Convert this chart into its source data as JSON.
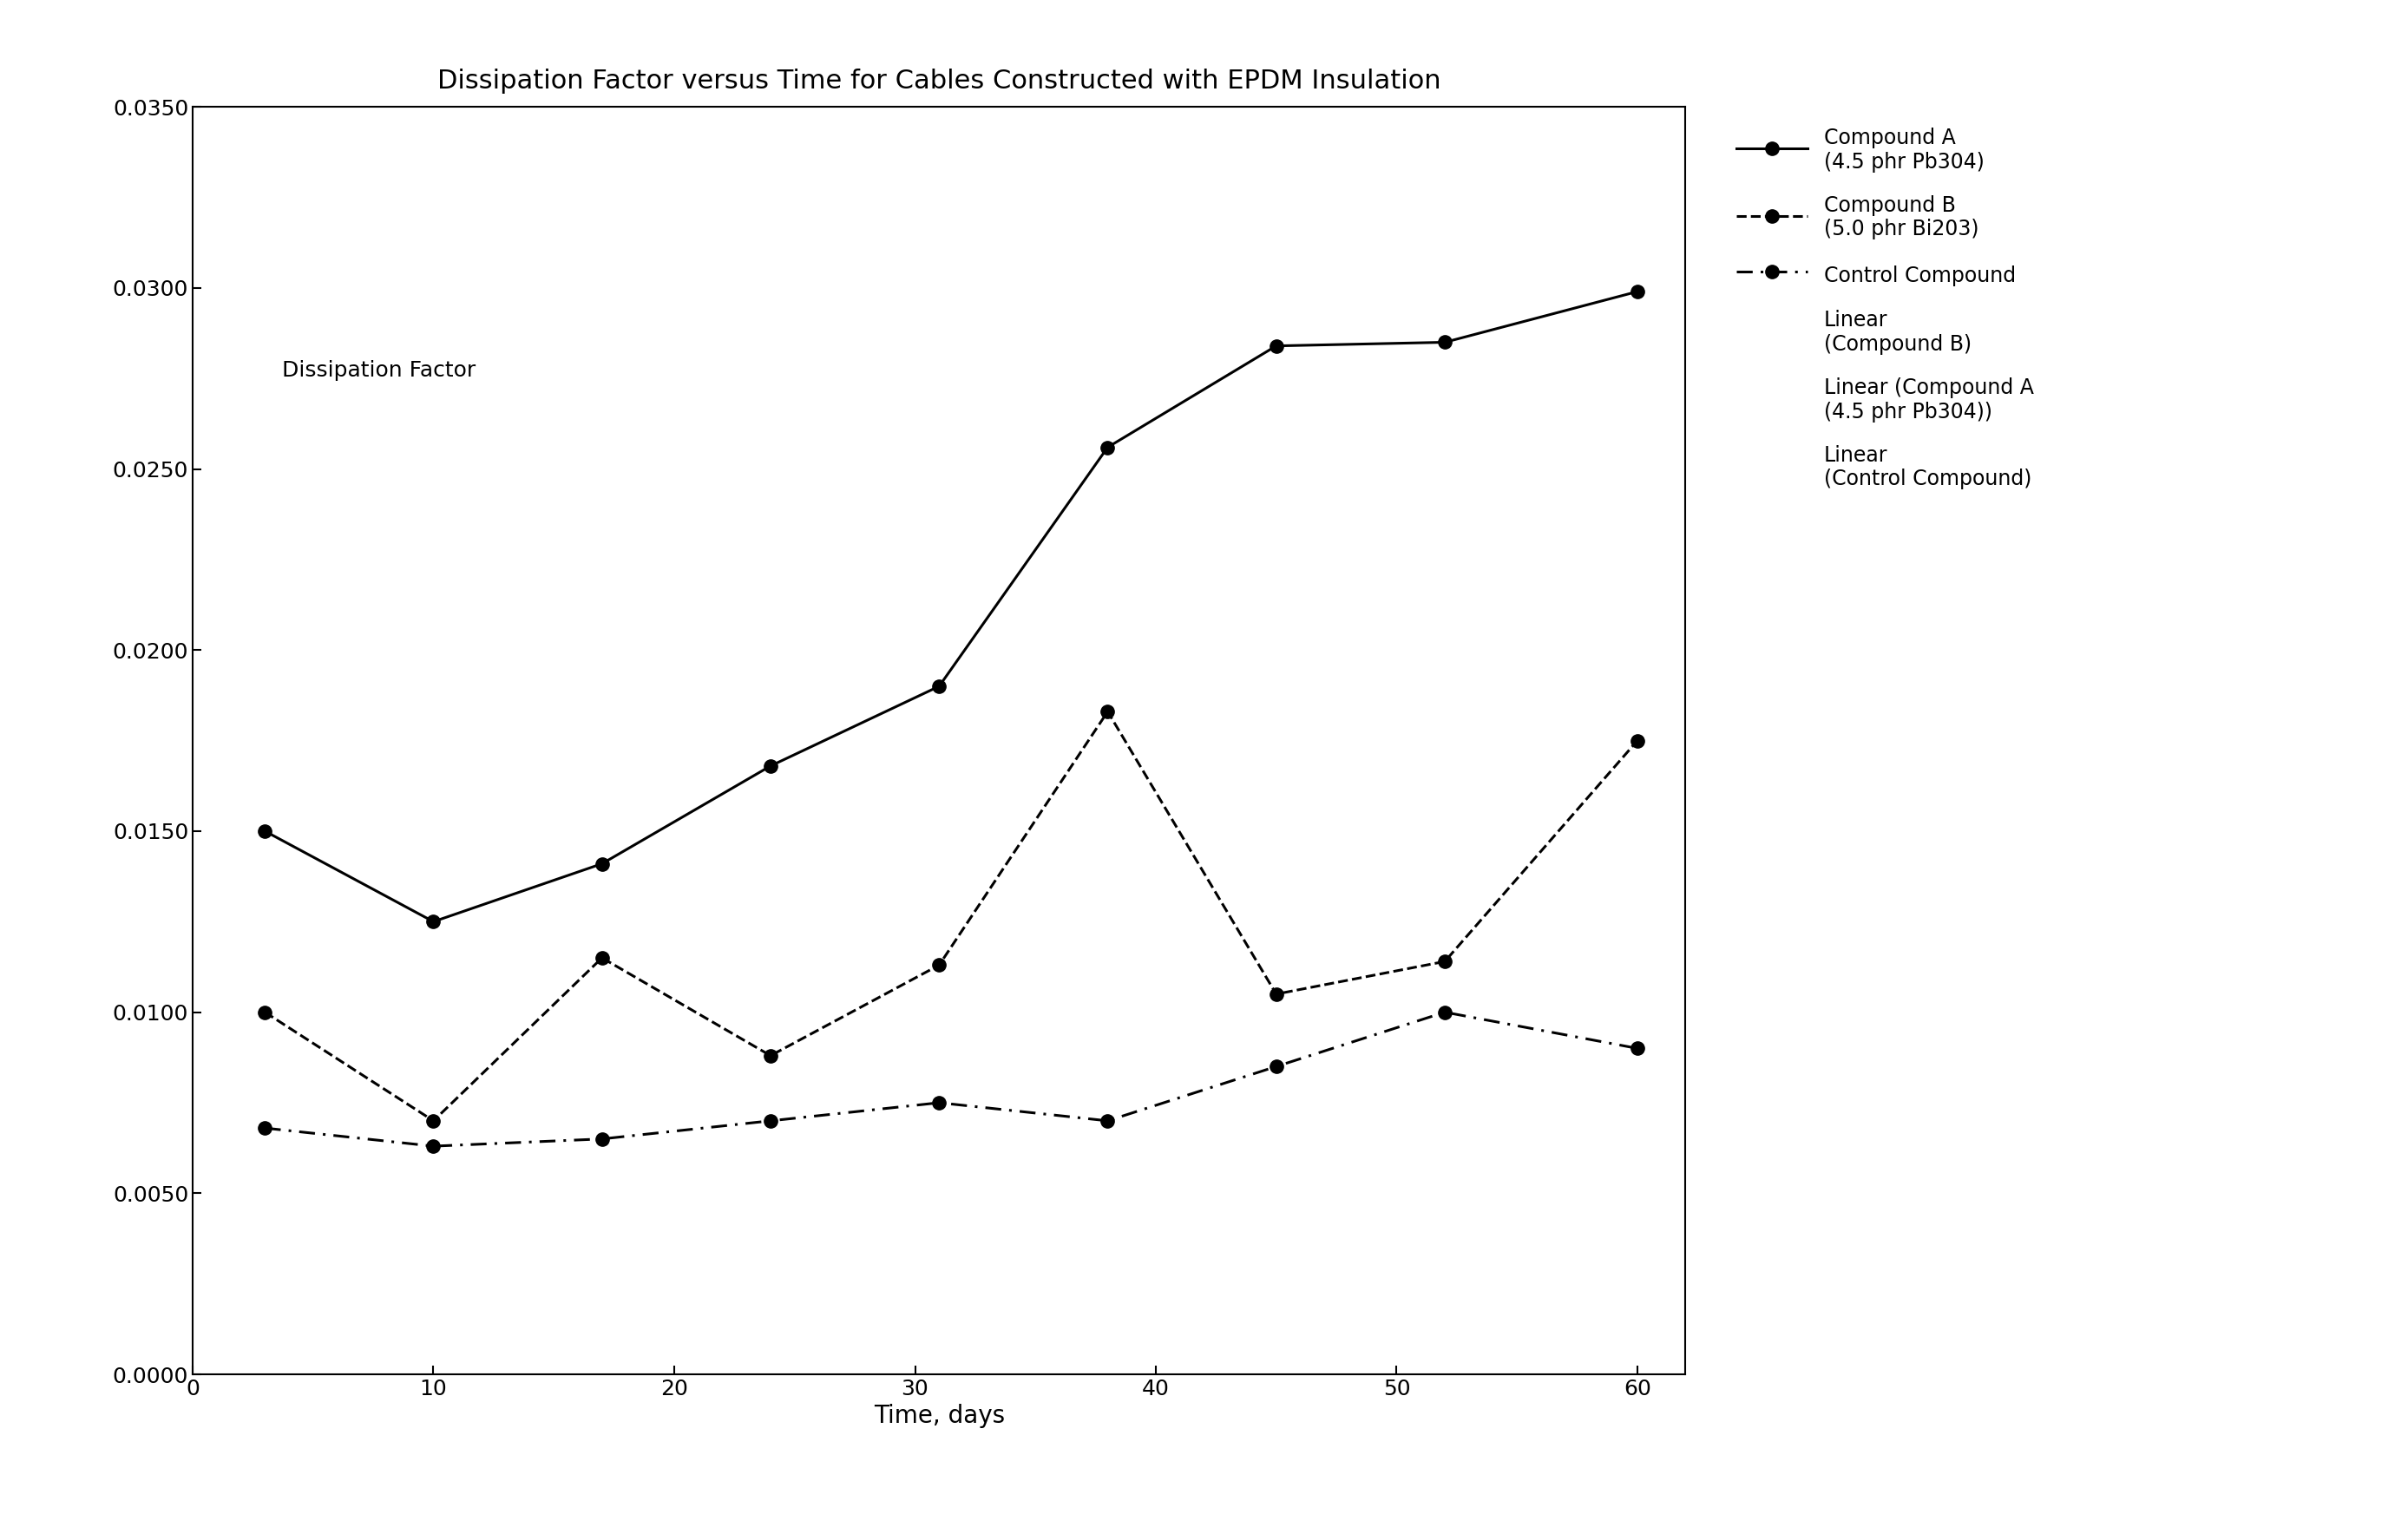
{
  "title": "Dissipation Factor versus Time for Cables Constructed with EPDM Insulation",
  "xlabel": "Time, days",
  "ylabel_annotation": "Dissipation Factor",
  "x": [
    3,
    10,
    17,
    24,
    31,
    38,
    45,
    52,
    60
  ],
  "compound_a": [
    0.015,
    0.0125,
    0.0141,
    0.0168,
    0.019,
    0.0256,
    0.0284,
    0.0285,
    0.0299
  ],
  "compound_b": [
    0.01,
    0.007,
    0.0115,
    0.0088,
    0.0113,
    0.0183,
    0.0105,
    0.0114,
    0.0175
  ],
  "control": [
    0.0068,
    0.0063,
    0.0065,
    0.007,
    0.0075,
    0.007,
    0.0085,
    0.01,
    0.009
  ],
  "ylim": [
    0.0,
    0.035
  ],
  "xlim": [
    0,
    62
  ],
  "yticks": [
    0.0,
    0.005,
    0.01,
    0.015,
    0.02,
    0.025,
    0.03,
    0.035
  ],
  "xticks": [
    0,
    10,
    20,
    30,
    40,
    50,
    60
  ],
  "legend_labels": [
    "Compound A\n(4.5 phr Pb304)",
    "Compound B\n(5.0 phr Bi203)",
    "Control Compound",
    "Linear\n(Compound B)",
    "Linear (Compound A\n(4.5 phr Pb304))",
    "Linear\n(Control Compound)"
  ],
  "color": "#000000",
  "background": "#ffffff",
  "title_fontsize": 22,
  "label_fontsize": 20,
  "tick_fontsize": 18,
  "legend_fontsize": 17,
  "annotation_fontsize": 18,
  "linewidth": 2.2,
  "markersize": 11
}
